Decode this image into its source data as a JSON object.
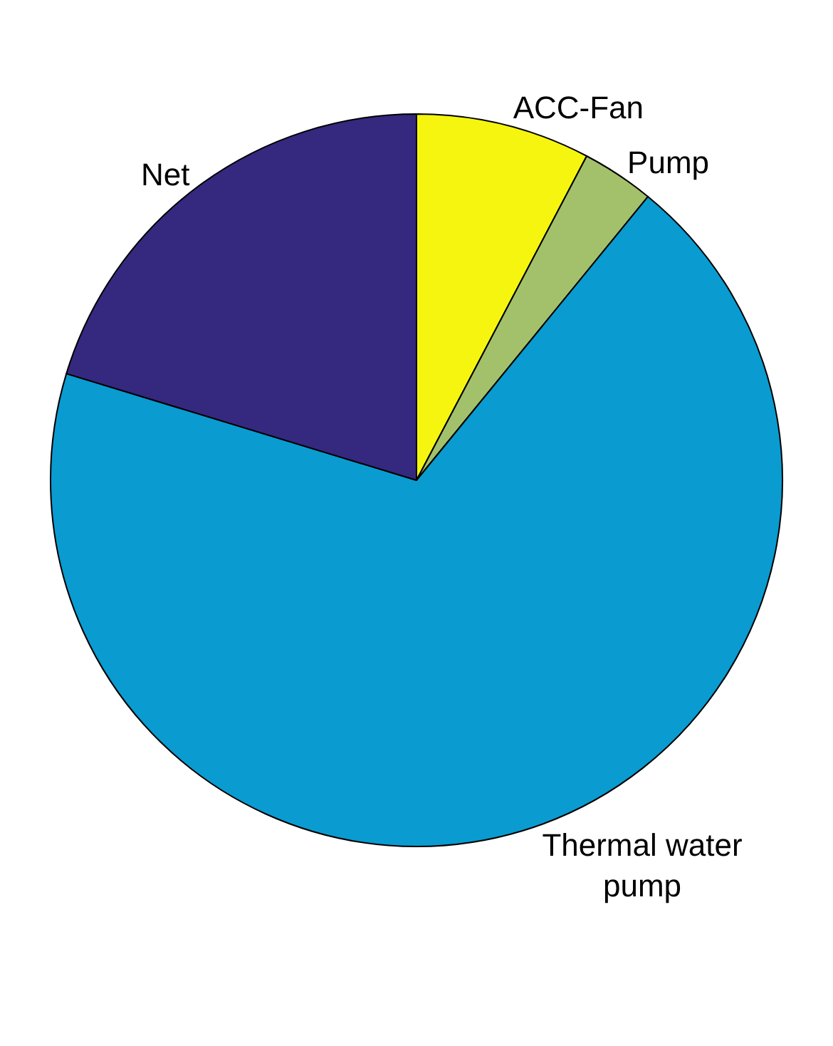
{
  "chart_data": {
    "type": "pie",
    "categories": [
      "ACC-Fan",
      "Pump",
      "Thermal water pump",
      "Net"
    ],
    "values": [
      7.7,
      3.2,
      68.8,
      20.3
    ],
    "colors": [
      "#f5f510",
      "#a3c16a",
      "#0a9bd0",
      "#35287f"
    ],
    "legend": false
  }
}
